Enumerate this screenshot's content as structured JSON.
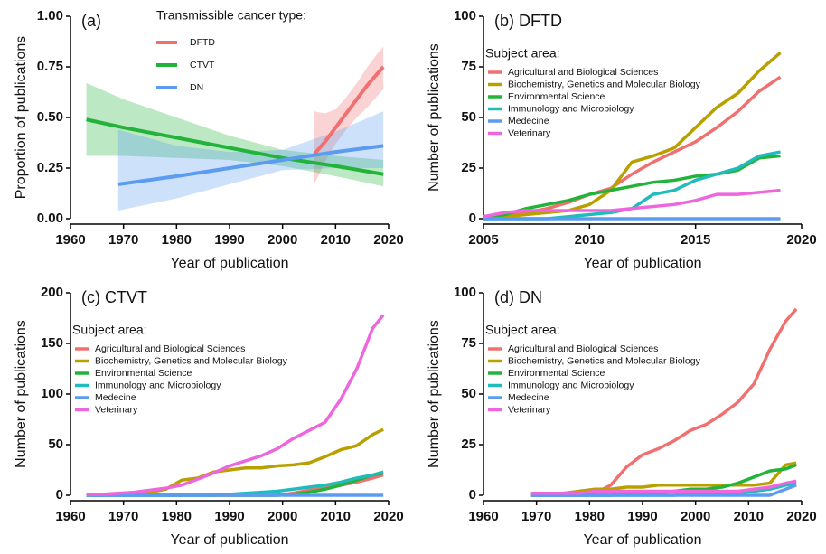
{
  "chart_data": [
    {
      "type": "line",
      "title": "(a)",
      "xlabel": "Year of publication",
      "ylabel": "Proportion of publications",
      "legend_title": "Transmissible cancer type:",
      "legend": "upper center",
      "band": true,
      "xlim": [
        1960,
        2020
      ],
      "xticks": [
        1960,
        1970,
        1980,
        1990,
        2000,
        2010,
        2020
      ],
      "ylim": [
        0,
        1
      ],
      "yticks": [
        {
          "value": 0,
          "label": "0.00"
        },
        0.25,
        {
          "value": 0.5,
          "label": "0.50"
        },
        0.75,
        {
          "value": 1,
          "label": "1.00"
        }
      ],
      "series": [
        {
          "name": "DFTD",
          "color": "#f07070",
          "x": [
            2006,
            2008,
            2010,
            2012,
            2014,
            2016,
            2018,
            2019
          ],
          "values": [
            0.32,
            0.38,
            0.45,
            0.52,
            0.59,
            0.66,
            0.72,
            0.75
          ],
          "lower": [
            0.17,
            0.28,
            0.37,
            0.44,
            0.5,
            0.55,
            0.61,
            0.64
          ],
          "upper": [
            0.53,
            0.52,
            0.54,
            0.6,
            0.67,
            0.75,
            0.82,
            0.85
          ]
        },
        {
          "name": "CTVT",
          "color": "#22b33a",
          "x": [
            1963,
            1970,
            1980,
            1990,
            2000,
            2010,
            2019
          ],
          "values": [
            0.49,
            0.45,
            0.4,
            0.35,
            0.3,
            0.26,
            0.22
          ],
          "lower": [
            0.31,
            0.31,
            0.3,
            0.29,
            0.26,
            0.21,
            0.16
          ],
          "upper": [
            0.67,
            0.59,
            0.5,
            0.41,
            0.34,
            0.31,
            0.29
          ]
        },
        {
          "name": "DN",
          "color": "#5b9bf0",
          "x": [
            1969,
            1980,
            1990,
            2000,
            2010,
            2019
          ],
          "values": [
            0.17,
            0.21,
            0.25,
            0.29,
            0.33,
            0.36
          ],
          "lower": [
            0.04,
            0.1,
            0.17,
            0.24,
            0.25,
            0.25
          ],
          "upper": [
            0.44,
            0.36,
            0.33,
            0.34,
            0.43,
            0.53
          ]
        }
      ]
    },
    {
      "type": "line",
      "title": "(b) DFTD",
      "xlabel": "Year of publication",
      "ylabel": "Number of publications",
      "legend_title": "Subject area:",
      "legend": "upper left",
      "xlim": [
        2005,
        2020
      ],
      "xticks": [
        2005,
        2010,
        2015,
        2020
      ],
      "ylim": [
        0,
        100
      ],
      "yticks": [
        0,
        25,
        50,
        75,
        100
      ],
      "x": [
        2005,
        2006,
        2007,
        2008,
        2009,
        2010,
        2011,
        2012,
        2013,
        2014,
        2015,
        2016,
        2017,
        2018,
        2019
      ],
      "series": [
        {
          "name": "Agricultural and Biological Sciences",
          "color": "#f07070",
          "values": [
            1,
            2,
            3,
            5,
            8,
            12,
            15,
            22,
            28,
            33,
            38,
            45,
            53,
            63,
            70
          ]
        },
        {
          "name": "Biochemistry, Genetics and Molecular Biology",
          "color": "#b8a000",
          "values": [
            1,
            1,
            2,
            3,
            4,
            7,
            14,
            28,
            31,
            35,
            45,
            55,
            62,
            73,
            82
          ]
        },
        {
          "name": "Environmental Science",
          "color": "#22b33a",
          "values": [
            0,
            2,
            5,
            7,
            9,
            12,
            14,
            16,
            18,
            19,
            21,
            22,
            24,
            30,
            31
          ]
        },
        {
          "name": "Immunology and Microbiology",
          "color": "#22bbbb",
          "values": [
            0,
            0,
            0,
            0,
            1,
            2,
            3,
            5,
            12,
            14,
            19,
            22,
            25,
            31,
            33
          ]
        },
        {
          "name": "Medecine",
          "color": "#5b9bf0",
          "values": [
            0,
            0,
            0,
            0,
            0,
            0,
            0,
            0,
            0,
            0,
            0,
            0,
            0,
            0,
            0
          ]
        },
        {
          "name": "Veterinary",
          "color": "#ee66dd",
          "values": [
            1,
            3,
            4,
            4,
            4,
            4,
            4,
            5,
            6,
            7,
            9,
            12,
            12,
            13,
            14
          ]
        }
      ]
    },
    {
      "type": "line",
      "title": "(c) CTVT",
      "xlabel": "Year of publication",
      "ylabel": "Number of publications",
      "legend_title": "Subject area:",
      "legend": "upper left",
      "xlim": [
        1960,
        2020
      ],
      "xticks": [
        1960,
        1970,
        1980,
        1990,
        2000,
        2010,
        2020
      ],
      "ylim": [
        0,
        200
      ],
      "yticks": [
        0,
        50,
        100,
        150,
        200
      ],
      "x": [
        1963,
        1966,
        1969,
        1972,
        1975,
        1978,
        1981,
        1984,
        1987,
        1990,
        1993,
        1996,
        1999,
        2002,
        2005,
        2008,
        2011,
        2014,
        2017,
        2019
      ],
      "series": [
        {
          "name": "Agricultural and Biological Sciences",
          "color": "#f07070",
          "values": [
            0,
            0,
            0,
            0,
            0,
            0,
            0,
            0,
            0,
            0,
            0,
            0,
            0,
            2,
            5,
            7,
            10,
            13,
            17,
            20
          ]
        },
        {
          "name": "Biochemistry, Genetics and Molecular Biology",
          "color": "#b8a000",
          "values": [
            0,
            0,
            1,
            2,
            3,
            6,
            15,
            17,
            23,
            25,
            27,
            27,
            29,
            30,
            32,
            38,
            45,
            49,
            60,
            65
          ]
        },
        {
          "name": "Environmental Science",
          "color": "#22b33a",
          "values": [
            0,
            0,
            0,
            0,
            0,
            0,
            0,
            0,
            0,
            0,
            0,
            0,
            0,
            1,
            3,
            6,
            10,
            15,
            20,
            22
          ]
        },
        {
          "name": "Immunology and Microbiology",
          "color": "#22bbbb",
          "values": [
            0,
            0,
            0,
            0,
            0,
            0,
            0,
            0,
            0,
            1,
            2,
            3,
            4,
            6,
            8,
            10,
            13,
            17,
            20,
            23
          ]
        },
        {
          "name": "Medecine",
          "color": "#5b9bf0",
          "values": [
            0,
            0,
            0,
            0,
            0,
            0,
            0,
            0,
            0,
            0,
            0,
            0,
            0,
            0,
            0,
            0,
            0,
            0,
            0,
            0
          ]
        },
        {
          "name": "Veterinary",
          "color": "#ee66dd",
          "values": [
            1,
            1,
            2,
            3,
            5,
            7,
            10,
            16,
            22,
            29,
            34,
            39,
            46,
            56,
            64,
            72,
            95,
            125,
            165,
            178
          ]
        }
      ]
    },
    {
      "type": "line",
      "title": "(d) DN",
      "xlabel": "Year of publication",
      "ylabel": "Number of publications",
      "legend_title": "Subject area:",
      "legend": "upper left",
      "xlim": [
        1960,
        2020
      ],
      "xticks": [
        1960,
        1970,
        1980,
        1990,
        2000,
        2010,
        2020
      ],
      "ylim": [
        0,
        100
      ],
      "yticks": [
        0,
        25,
        50,
        75,
        100
      ],
      "x": [
        1969,
        1972,
        1975,
        1978,
        1981,
        1984,
        1987,
        1990,
        1993,
        1996,
        1999,
        2002,
        2005,
        2008,
        2011,
        2014,
        2017,
        2019
      ],
      "series": [
        {
          "name": "Agricultural and Biological Sciences",
          "color": "#f07070",
          "values": [
            0,
            0,
            0,
            0,
            1,
            5,
            14,
            20,
            23,
            27,
            32,
            35,
            40,
            46,
            55,
            72,
            86,
            92
          ]
        },
        {
          "name": "Biochemistry, Genetics and Molecular Biology",
          "color": "#b8a000",
          "values": [
            1,
            1,
            1,
            2,
            3,
            3,
            4,
            4,
            5,
            5,
            5,
            5,
            5,
            5,
            5,
            6,
            15,
            16
          ]
        },
        {
          "name": "Environmental Science",
          "color": "#22b33a",
          "values": [
            0,
            0,
            0,
            0,
            0,
            0,
            1,
            1,
            1,
            2,
            3,
            3,
            4,
            6,
            9,
            12,
            13,
            15
          ]
        },
        {
          "name": "Immunology and Microbiology",
          "color": "#22bbbb",
          "values": [
            0,
            0,
            0,
            0,
            0,
            0,
            0,
            0,
            0,
            0,
            1,
            1,
            1,
            1,
            2,
            3,
            5,
            6
          ]
        },
        {
          "name": "Medecine",
          "color": "#5b9bf0",
          "values": [
            0,
            0,
            0,
            0,
            0,
            0,
            0,
            0,
            0,
            0,
            0,
            0,
            0,
            0,
            0,
            0,
            3,
            5
          ]
        },
        {
          "name": "Veterinary",
          "color": "#ee66dd",
          "values": [
            1,
            1,
            1,
            1,
            2,
            2,
            2,
            2,
            2,
            2,
            2,
            2,
            2,
            2,
            3,
            4,
            6,
            7
          ]
        }
      ]
    }
  ]
}
